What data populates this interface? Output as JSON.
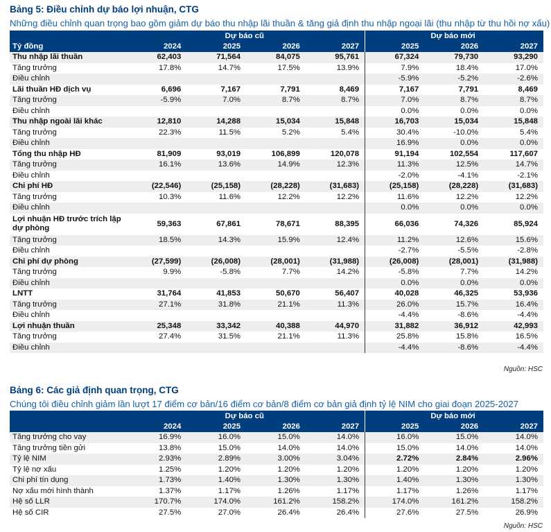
{
  "table5": {
    "title": "Bảng 5: Điều chỉnh dự báo lợi nhuận, CTG",
    "subtitle": "Những điều chỉnh quan trọng bao gồm giảm dự báo thu nhập lãi thuần & tăng giả định thu nhập ngoại lãi (thu nhập từ thu hồi nợ xấu)",
    "group_old": "Dự báo cũ",
    "group_new": "Dự báo mới",
    "unit_label": "Tỷ đồng",
    "years": [
      "2024",
      "2025",
      "2026",
      "2027",
      "2025",
      "2026",
      "2027"
    ],
    "rows": [
      {
        "label": "Thu nhập lãi thuần",
        "bold": true,
        "values": [
          "62,403",
          "71,564",
          "84,075",
          "95,761",
          "67,324",
          "79,730",
          "93,290"
        ]
      },
      {
        "label": "Tăng trưởng",
        "values": [
          "17.8%",
          "14.7%",
          "17.5%",
          "13.9%",
          "7.9%",
          "18.4%",
          "17.0%"
        ]
      },
      {
        "label": "Điều chỉnh",
        "values": [
          "",
          "",
          "",
          "",
          "-5.9%",
          "-5.2%",
          "-2.6%"
        ]
      },
      {
        "label": "Lãi thuần HĐ dịch vụ",
        "bold": true,
        "values": [
          "6,696",
          "7,167",
          "7,791",
          "8,469",
          "7,167",
          "7,791",
          "8,469"
        ]
      },
      {
        "label": "Tăng trưởng",
        "values": [
          "-5.9%",
          "7.0%",
          "8.7%",
          "8.7%",
          "7.0%",
          "8.7%",
          "8.7%"
        ]
      },
      {
        "label": "Điều chỉnh",
        "values": [
          "",
          "",
          "",
          "",
          "0.0%",
          "0.0%",
          "0.0%"
        ]
      },
      {
        "label": "Thu nhập ngoài lãi khác",
        "bold": true,
        "values": [
          "12,810",
          "14,288",
          "15,034",
          "15,848",
          "16,703",
          "15,034",
          "15,848"
        ]
      },
      {
        "label": "Tăng trưởng",
        "values": [
          "22.3%",
          "11.5%",
          "5.2%",
          "5.4%",
          "30.4%",
          "-10.0%",
          "5.4%"
        ]
      },
      {
        "label": "Điều chỉnh",
        "values": [
          "",
          "",
          "",
          "",
          "16.9%",
          "0.0%",
          "0.0%"
        ]
      },
      {
        "label": "Tổng thu nhập HĐ",
        "bold": true,
        "values": [
          "81,909",
          "93,019",
          "106,899",
          "120,078",
          "91,194",
          "102,554",
          "117,607"
        ]
      },
      {
        "label": "Tăng trưởng",
        "values": [
          "16.1%",
          "13.6%",
          "14.9%",
          "12.3%",
          "11.3%",
          "12.5%",
          "14.7%"
        ]
      },
      {
        "label": "Điều chỉnh",
        "values": [
          "",
          "",
          "",
          "",
          "-2.0%",
          "-4.1%",
          "-2.1%"
        ]
      },
      {
        "label": "Chi phí HĐ",
        "bold": true,
        "values": [
          "(22,546)",
          "(25,158)",
          "(28,228)",
          "(31,683)",
          "(25,158)",
          "(28,228)",
          "(31,683)"
        ]
      },
      {
        "label": "Tăng trưởng",
        "values": [
          "10.3%",
          "11.6%",
          "12.2%",
          "12.2%",
          "11.6%",
          "12.2%",
          "12.2%"
        ]
      },
      {
        "label": "Điều chỉnh",
        "values": [
          "",
          "",
          "",
          "",
          "0.0%",
          "0.0%",
          "0.0%"
        ]
      },
      {
        "label": "Lợi nhuận HĐ trước trích lập dự phòng",
        "bold": true,
        "double": true,
        "values": [
          "59,363",
          "67,861",
          "78,671",
          "88,395",
          "66,036",
          "74,326",
          "85,924"
        ]
      },
      {
        "label": "Tăng trưởng",
        "values": [
          "18.5%",
          "14.3%",
          "15.9%",
          "12.4%",
          "11.2%",
          "12.6%",
          "15.6%"
        ]
      },
      {
        "label": "Điều chỉnh",
        "values": [
          "",
          "",
          "",
          "",
          "-2.7%",
          "-5.5%",
          "-2.8%"
        ]
      },
      {
        "label": "Chi phí dự phòng",
        "bold": true,
        "values": [
          "(27,599)",
          "(26,008)",
          "(28,001)",
          "(31,988)",
          "(26,008)",
          "(28,001)",
          "(31,988)"
        ]
      },
      {
        "label": "Tăng trưởng",
        "values": [
          "9.9%",
          "-5.8%",
          "7.7%",
          "14.2%",
          "-5.8%",
          "7.7%",
          "14.2%"
        ]
      },
      {
        "label": "Điều chỉnh",
        "values": [
          "",
          "",
          "",
          "",
          "0.0%",
          "0.0%",
          "0.0%"
        ]
      },
      {
        "label": "LNTT",
        "bold": true,
        "values": [
          "31,764",
          "41,853",
          "50,670",
          "56,407",
          "40,028",
          "46,325",
          "53,936"
        ]
      },
      {
        "label": "Tăng trưởng",
        "values": [
          "27.1%",
          "31.8%",
          "21.1%",
          "11.3%",
          "26.0%",
          "15.7%",
          "16.4%"
        ]
      },
      {
        "label": "Điều chỉnh",
        "values": [
          "",
          "",
          "",
          "",
          "-4.4%",
          "-8.6%",
          "-4.4%"
        ]
      },
      {
        "label": "Lợi nhuận thuần",
        "bold": true,
        "values": [
          "25,348",
          "33,342",
          "40,388",
          "44,970",
          "31,882",
          "36,912",
          "42,993"
        ]
      },
      {
        "label": "Tăng trưởng",
        "values": [
          "27.4%",
          "31.5%",
          "21.1%",
          "11.3%",
          "25.8%",
          "15.8%",
          "16.5%"
        ]
      },
      {
        "label": "Điều chỉnh",
        "values": [
          "",
          "",
          "",
          "",
          "-4.4%",
          "-8.6%",
          "-4.4%"
        ]
      }
    ],
    "source": "Nguồn: HSC"
  },
  "table6": {
    "title": "Bảng 6: Các giả định quan trọng, CTG",
    "subtitle": "Chúng tôi điều chỉnh giảm lần lượt 17 điểm cơ bản/16 điểm cơ bản/8 điểm cơ bản giả định tỷ lệ NIM cho giai đoạn 2025-2027",
    "group_old": "Dự báo cũ",
    "group_new": "Dự báo mới",
    "unit_label": "",
    "years": [
      "2024",
      "2025",
      "2026",
      "2027",
      "2025",
      "2026",
      "2027"
    ],
    "rows": [
      {
        "label": "Tăng trưởng cho vay",
        "values": [
          "16.9%",
          "16.0%",
          "15.0%",
          "14.0%",
          "16.0%",
          "15.0%",
          "14.0%"
        ]
      },
      {
        "label": "Tăng trưởng tiền gửi",
        "values": [
          "13.8%",
          "15.0%",
          "14.0%",
          "14.0%",
          "15.0%",
          "14.0%",
          "14.0%"
        ]
      },
      {
        "label": "Tỷ lệ NIM",
        "bold_new": true,
        "values": [
          "2.93%",
          "2.89%",
          "3.00%",
          "3.04%",
          "2.72%",
          "2.84%",
          "2.96%"
        ]
      },
      {
        "label": "Tỷ lệ nợ xấu",
        "values": [
          "1.25%",
          "1.20%",
          "1.20%",
          "1.20%",
          "1.20%",
          "1.20%",
          "1.20%"
        ]
      },
      {
        "label": "Chi phí tín dụng",
        "values": [
          "1.73%",
          "1.40%",
          "1.30%",
          "1.30%",
          "1.40%",
          "1.30%",
          "1.30%"
        ]
      },
      {
        "label": "Nợ xấu mới hình thành",
        "values": [
          "1.37%",
          "1.17%",
          "1.26%",
          "1.17%",
          "1.17%",
          "1.26%",
          "1.17%"
        ]
      },
      {
        "label": "Hệ số LLR",
        "values": [
          "170.7%",
          "174.0%",
          "161.2%",
          "158.2%",
          "174.0%",
          "161.2%",
          "158.2%"
        ]
      },
      {
        "label": "Hệ số CIR",
        "values": [
          "27.5%",
          "27.0%",
          "26.4%",
          "26.4%",
          "27.6%",
          "27.5%",
          "26.9%"
        ]
      }
    ],
    "source": "Nguồn: HSC"
  }
}
